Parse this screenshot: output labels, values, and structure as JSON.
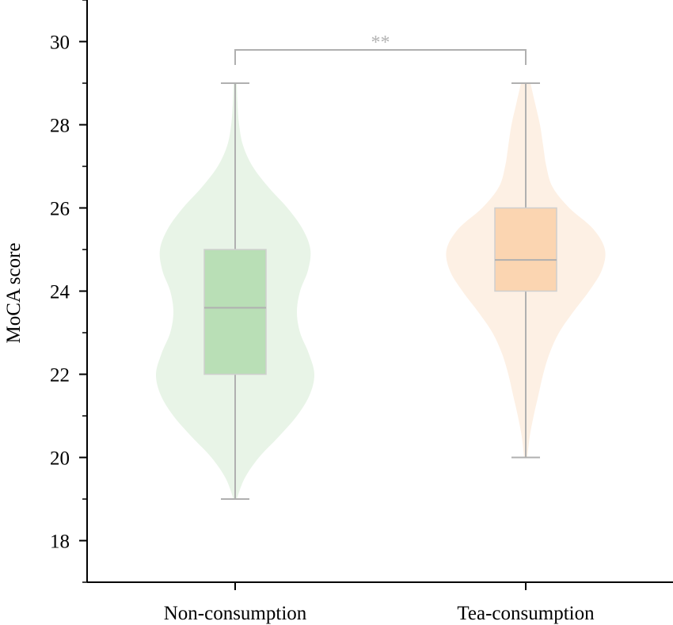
{
  "chart_data": {
    "type": "violin-box",
    "ylabel": "MoCA score",
    "ylim": [
      17,
      31
    ],
    "yticks": [
      18,
      20,
      22,
      24,
      26,
      28,
      30
    ],
    "y_minor_step": 1,
    "categories": [
      "Non-consumption",
      "Tea-consumption"
    ],
    "groups": [
      {
        "category": "Non-consumption",
        "color": "#b9dfb6",
        "violin_color": "#e8f4e7",
        "box": {
          "whisker_low": 19,
          "q1": 22,
          "median": 23.6,
          "q3": 25,
          "whisker_high": 29
        },
        "violin": [
          [
            19.0,
            0.02
          ],
          [
            19.5,
            0.12
          ],
          [
            20.0,
            0.3
          ],
          [
            20.5,
            0.55
          ],
          [
            21.0,
            0.78
          ],
          [
            21.5,
            0.94
          ],
          [
            22.0,
            1.0
          ],
          [
            22.5,
            0.93
          ],
          [
            23.0,
            0.82
          ],
          [
            23.5,
            0.78
          ],
          [
            24.0,
            0.82
          ],
          [
            24.5,
            0.92
          ],
          [
            25.0,
            0.95
          ],
          [
            25.5,
            0.85
          ],
          [
            26.0,
            0.66
          ],
          [
            26.5,
            0.42
          ],
          [
            27.0,
            0.22
          ],
          [
            27.5,
            0.1
          ],
          [
            28.0,
            0.05
          ],
          [
            28.5,
            0.03
          ],
          [
            29.0,
            0.02
          ]
        ]
      },
      {
        "category": "Tea-consumption",
        "color": "#fbd5b1",
        "violin_color": "#fdf0e4",
        "box": {
          "whisker_low": 20,
          "q1": 24,
          "median": 24.75,
          "q3": 26,
          "whisker_high": 29
        },
        "violin": [
          [
            20.0,
            0.02
          ],
          [
            20.5,
            0.05
          ],
          [
            21.0,
            0.1
          ],
          [
            21.5,
            0.16
          ],
          [
            22.0,
            0.22
          ],
          [
            22.5,
            0.3
          ],
          [
            23.0,
            0.42
          ],
          [
            23.5,
            0.6
          ],
          [
            24.0,
            0.8
          ],
          [
            24.5,
            0.96
          ],
          [
            25.0,
            1.0
          ],
          [
            25.5,
            0.85
          ],
          [
            26.0,
            0.55
          ],
          [
            26.5,
            0.34
          ],
          [
            27.0,
            0.26
          ],
          [
            27.5,
            0.22
          ],
          [
            28.0,
            0.18
          ],
          [
            28.5,
            0.12
          ],
          [
            29.0,
            0.06
          ]
        ]
      }
    ],
    "significance": {
      "between": [
        "Non-consumption",
        "Tea-consumption"
      ],
      "label": "**"
    }
  }
}
